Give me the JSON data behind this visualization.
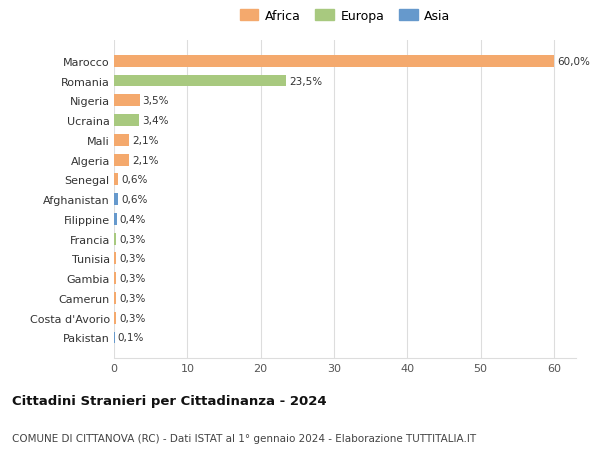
{
  "countries": [
    "Marocco",
    "Romania",
    "Nigeria",
    "Ucraina",
    "Mali",
    "Algeria",
    "Senegal",
    "Afghanistan",
    "Filippine",
    "Francia",
    "Tunisia",
    "Gambia",
    "Camerun",
    "Costa d'Avorio",
    "Pakistan"
  ],
  "values": [
    60.0,
    23.5,
    3.5,
    3.4,
    2.1,
    2.1,
    0.6,
    0.6,
    0.4,
    0.3,
    0.3,
    0.3,
    0.3,
    0.3,
    0.1
  ],
  "labels": [
    "60,0%",
    "23,5%",
    "3,5%",
    "3,4%",
    "2,1%",
    "2,1%",
    "0,6%",
    "0,6%",
    "0,4%",
    "0,3%",
    "0,3%",
    "0,3%",
    "0,3%",
    "0,3%",
    "0,1%"
  ],
  "continents": [
    "Africa",
    "Europa",
    "Africa",
    "Europa",
    "Africa",
    "Africa",
    "Africa",
    "Asia",
    "Asia",
    "Europa",
    "Africa",
    "Africa",
    "Africa",
    "Africa",
    "Asia"
  ],
  "colors": {
    "Africa": "#F4A96D",
    "Europa": "#A8C97F",
    "Asia": "#6699CC"
  },
  "legend_order": [
    "Africa",
    "Europa",
    "Asia"
  ],
  "title": "Cittadini Stranieri per Cittadinanza - 2024",
  "subtitle": "COMUNE DI CITTANOVA (RC) - Dati ISTAT al 1° gennaio 2024 - Elaborazione TUTTITALIA.IT",
  "xlim": [
    0,
    63
  ],
  "xticks": [
    0,
    10,
    20,
    30,
    40,
    50,
    60
  ],
  "background_color": "#ffffff",
  "grid_color": "#dddddd"
}
